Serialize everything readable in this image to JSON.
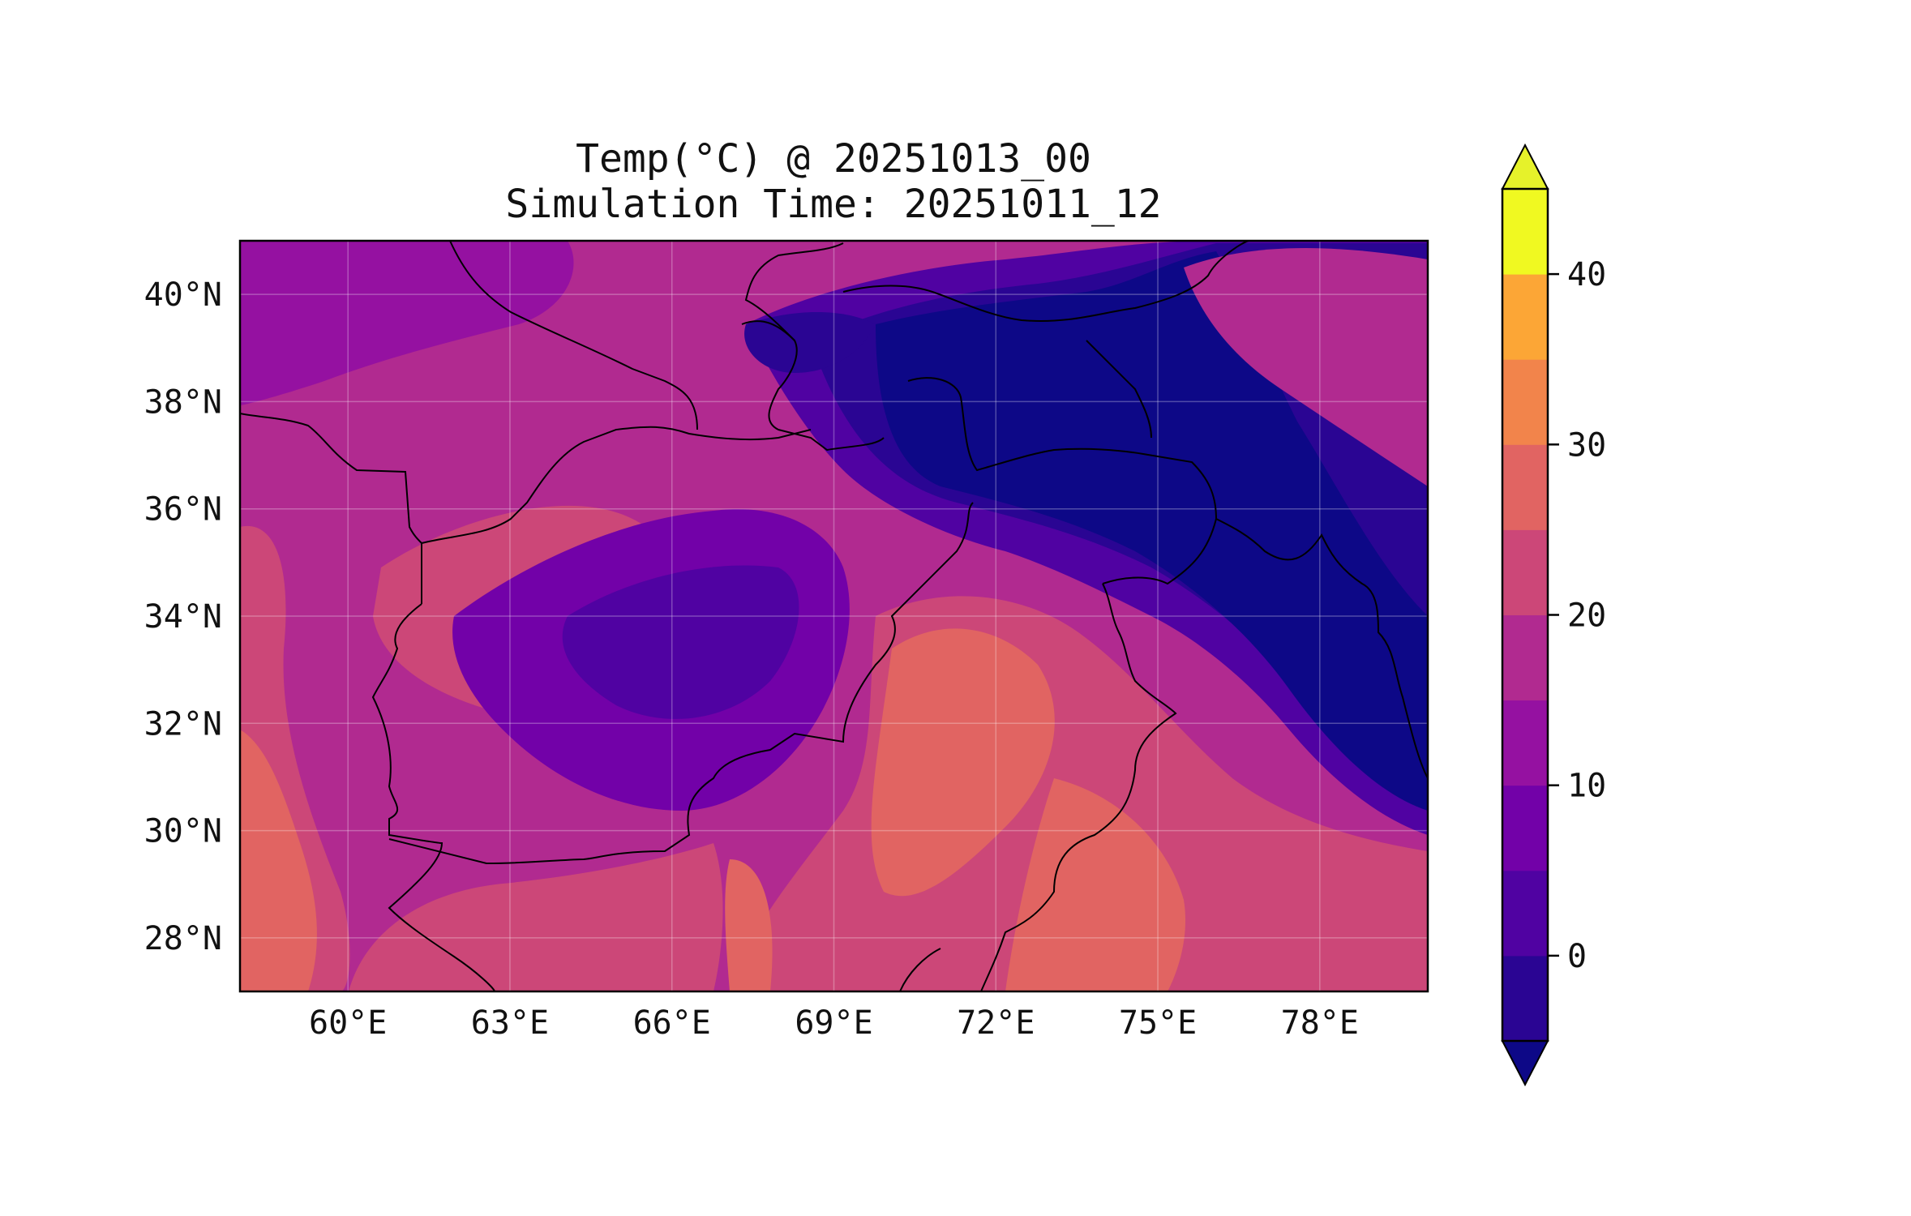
{
  "title_line1": "Temp(°C) @ 20251013_00",
  "title_line2": "Simulation Time: 20251011_12",
  "map": {
    "lon_range": [
      58.0,
      80.0
    ],
    "lat_range": [
      27.0,
      41.0
    ],
    "lon_ticks": [
      {
        "value": 60,
        "label": "60°E"
      },
      {
        "value": 63,
        "label": "63°E"
      },
      {
        "value": 66,
        "label": "66°E"
      },
      {
        "value": 69,
        "label": "69°E"
      },
      {
        "value": 72,
        "label": "72°E"
      },
      {
        "value": 75,
        "label": "75°E"
      },
      {
        "value": 78,
        "label": "78°E"
      }
    ],
    "lat_ticks": [
      {
        "value": 28,
        "label": "28°N"
      },
      {
        "value": 30,
        "label": "30°N"
      },
      {
        "value": 32,
        "label": "32°N"
      },
      {
        "value": 34,
        "label": "34°N"
      },
      {
        "value": 36,
        "label": "36°N"
      },
      {
        "value": 38,
        "label": "38°N"
      },
      {
        "value": 40,
        "label": "40°N"
      }
    ],
    "gridlines": true
  },
  "colorbar": {
    "min": -5,
    "max": 45,
    "extend": "both",
    "ticks": [
      {
        "value": 0,
        "label": "0"
      },
      {
        "value": 10,
        "label": "10"
      },
      {
        "value": 20,
        "label": "20"
      },
      {
        "value": 30,
        "label": "30"
      },
      {
        "value": 40,
        "label": "40"
      }
    ],
    "levels": [
      {
        "from": -5,
        "to": 0,
        "color": "#2a0593"
      },
      {
        "from": 0,
        "to": 5,
        "color": "#5002a2"
      },
      {
        "from": 5,
        "to": 10,
        "color": "#7201a8"
      },
      {
        "from": 10,
        "to": 15,
        "color": "#9511a1"
      },
      {
        "from": 15,
        "to": 20,
        "color": "#b12a90"
      },
      {
        "from": 20,
        "to": 25,
        "color": "#cc4778"
      },
      {
        "from": 25,
        "to": 30,
        "color": "#e16462"
      },
      {
        "from": 30,
        "to": 35,
        "color": "#f2844b"
      },
      {
        "from": 35,
        "to": 40,
        "color": "#fca636"
      },
      {
        "from": 40,
        "to": 45,
        "color": "#f0f921"
      }
    ],
    "under_color": "#0d0887",
    "over_color": "#e6f22a"
  }
}
